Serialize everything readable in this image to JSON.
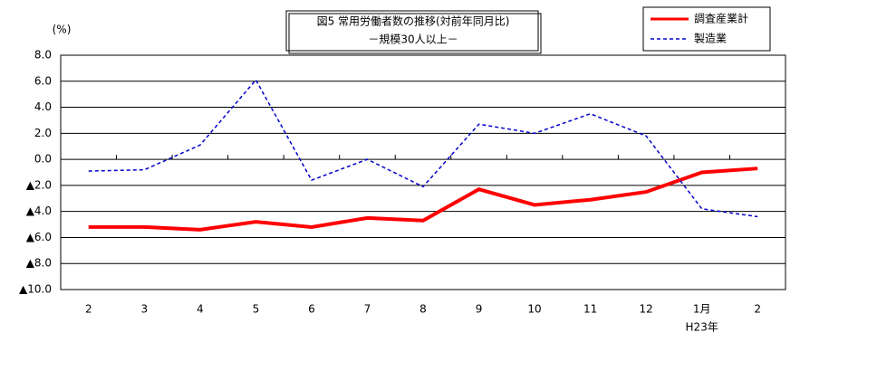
{
  "chart_data": {
    "type": "line",
    "title": "図5 常用労働者数の推移(対前年同月比)",
    "subtitle": "－規模30人以上－",
    "y_label": "(%)",
    "annotation": "H23年",
    "categories": [
      "2",
      "3",
      "4",
      "5",
      "6",
      "7",
      "8",
      "9",
      "10",
      "11",
      "12",
      "1月",
      "2"
    ],
    "series": [
      {
        "name": "調査産業計",
        "color": "#ff0000",
        "line_style": "solid",
        "values": [
          -5.2,
          -5.2,
          -5.4,
          -4.8,
          -5.2,
          -4.5,
          -4.7,
          -2.3,
          -3.5,
          -3.1,
          -2.5,
          -1.0,
          -0.7
        ]
      },
      {
        "name": "製造業",
        "color": "#0000cc",
        "line_style": "dashed",
        "values": [
          -0.9,
          -0.8,
          1.1,
          6.1,
          -1.6,
          0.0,
          -2.1,
          2.7,
          2.0,
          3.5,
          1.8,
          -3.8,
          -4.4
        ]
      }
    ],
    "ylim": [
      -10,
      8
    ],
    "yticks": [
      {
        "value": -10,
        "label": "▲10.0"
      },
      {
        "value": -8,
        "label": "▲8.0"
      },
      {
        "value": -6,
        "label": "▲6.0"
      },
      {
        "value": -4,
        "label": "▲4.0"
      },
      {
        "value": -2,
        "label": "▲2.0"
      },
      {
        "value": 0,
        "label": "0.0"
      },
      {
        "value": 2,
        "label": "2.0"
      },
      {
        "value": 4,
        "label": "4.0"
      },
      {
        "value": 6,
        "label": "6.0"
      },
      {
        "value": 8,
        "label": "8.0"
      }
    ],
    "grid": true
  }
}
